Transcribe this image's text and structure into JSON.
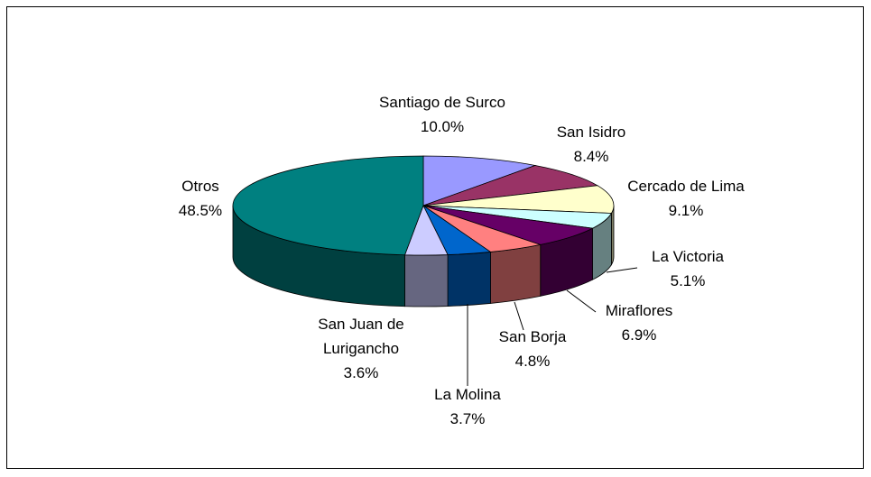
{
  "chart_data": {
    "type": "pie",
    "3d": true,
    "categories": [
      "Santiago de Surco",
      "San Isidro",
      "Cercado de Lima",
      "La Victoria",
      "Miraflores",
      "San Borja",
      "La Molina",
      "San Juan de Lurigancho",
      "Otros"
    ],
    "values": [
      10.0,
      8.4,
      9.1,
      5.1,
      6.9,
      4.8,
      3.7,
      3.6,
      48.5
    ],
    "value_labels": [
      "10.0%",
      "8.4%",
      "9.1%",
      "5.1%",
      "6.9%",
      "4.8%",
      "3.7%",
      "3.6%",
      "48.5%"
    ],
    "colors": [
      "#9999ff",
      "#993366",
      "#ffffcc",
      "#ccffff",
      "#660066",
      "#ff8080",
      "#0066cc",
      "#ccccff",
      "#008080"
    ]
  }
}
